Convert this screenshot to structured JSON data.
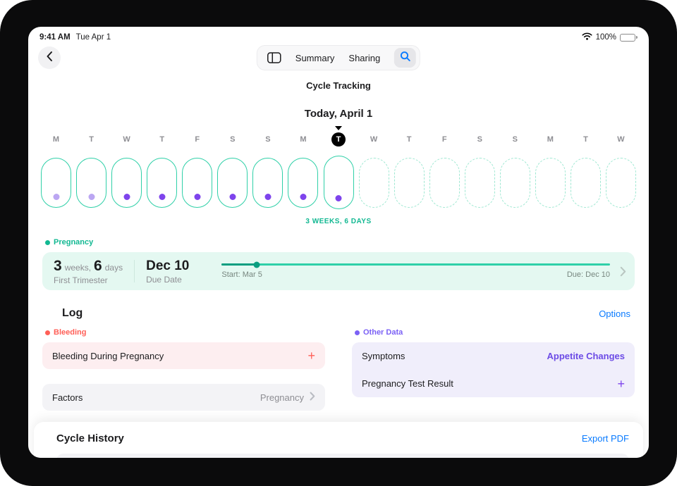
{
  "colors": {
    "teal": "#2fd0a8",
    "teal-dark": "#12b892",
    "teal-dashed": "#9fe8d2",
    "mint-bg": "#e4f8f1",
    "purple": "#7e44ec",
    "purple-light": "#bba6f2",
    "purple-label": "#7b61f5",
    "purple-bg": "#f0eefb",
    "red": "#ff5f57",
    "red-bg": "#fdeef0",
    "gray-bg": "#f3f3f6",
    "blue": "#0a7bff",
    "text-dark": "#1c1c1e",
    "text-gray": "#8e8e93"
  },
  "status_bar": {
    "time": "9:41 AM",
    "date": "Tue Apr 1",
    "battery_percent": "100%"
  },
  "nav": {
    "tab_summary": "Summary",
    "tab_sharing": "Sharing",
    "title": "Cycle Tracking"
  },
  "timeline": {
    "today_label": "Today, April 1",
    "annotation": "3 WEEKS, 6 DAYS",
    "days": [
      {
        "letter": "M",
        "state": "past",
        "dot": "light"
      },
      {
        "letter": "T",
        "state": "past",
        "dot": "light"
      },
      {
        "letter": "W",
        "state": "past",
        "dot": "dark"
      },
      {
        "letter": "T",
        "state": "past",
        "dot": "dark"
      },
      {
        "letter": "F",
        "state": "past",
        "dot": "dark"
      },
      {
        "letter": "S",
        "state": "past",
        "dot": "dark"
      },
      {
        "letter": "S",
        "state": "past",
        "dot": "dark"
      },
      {
        "letter": "M",
        "state": "past",
        "dot": "dark"
      },
      {
        "letter": "T",
        "state": "today",
        "dot": "dark"
      },
      {
        "letter": "W",
        "state": "future",
        "dot": "none"
      },
      {
        "letter": "T",
        "state": "future",
        "dot": "none"
      },
      {
        "letter": "F",
        "state": "future",
        "dot": "none"
      },
      {
        "letter": "S",
        "state": "future",
        "dot": "none"
      },
      {
        "letter": "S",
        "state": "future",
        "dot": "none"
      },
      {
        "letter": "M",
        "state": "future",
        "dot": "none"
      },
      {
        "letter": "T",
        "state": "future",
        "dot": "none"
      },
      {
        "letter": "W",
        "state": "future",
        "dot": "none"
      }
    ]
  },
  "pregnancy": {
    "section_label": "Pregnancy",
    "weeks_value": "3",
    "weeks_unit": "weeks,",
    "days_value": "6",
    "days_unit": "days",
    "stage": "First Trimester",
    "due_value": "Dec 10",
    "due_label": "Due Date",
    "start_caption": "Start: Mar 5",
    "due_caption": "Due: Dec 10",
    "progress_pct": 9
  },
  "log": {
    "heading": "Log",
    "options_link": "Options",
    "bleeding_section": "Bleeding",
    "bleeding_item": "Bleeding During Pregnancy",
    "add_symbol": "+",
    "factors_label": "Factors",
    "factors_value": "Pregnancy",
    "other_section": "Other Data",
    "symptoms_label": "Symptoms",
    "symptoms_value": "Appetite Changes",
    "test_label": "Pregnancy Test Result"
  },
  "history": {
    "heading": "Cycle History",
    "export_link": "Export PDF"
  }
}
